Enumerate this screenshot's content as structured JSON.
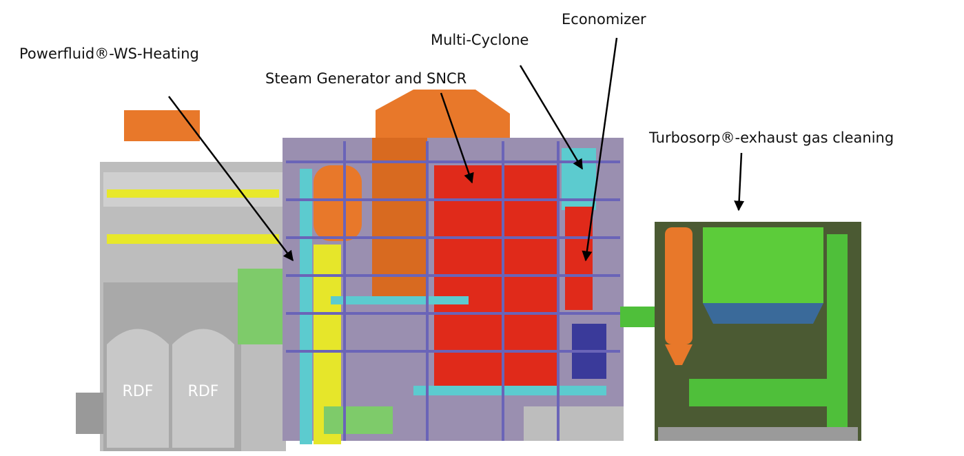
{
  "callouts": [
    {
      "label": "Powerfluid®-WS-Heating"
    },
    {
      "label": "Steam Generator and SNCR"
    },
    {
      "label": "Multi-Cyclone"
    },
    {
      "label": "Economizer"
    },
    {
      "label": "Turbosorp®-exhaust gas cleaning"
    }
  ],
  "silos": [
    {
      "label": "RDF"
    },
    {
      "label": "RDF"
    }
  ]
}
